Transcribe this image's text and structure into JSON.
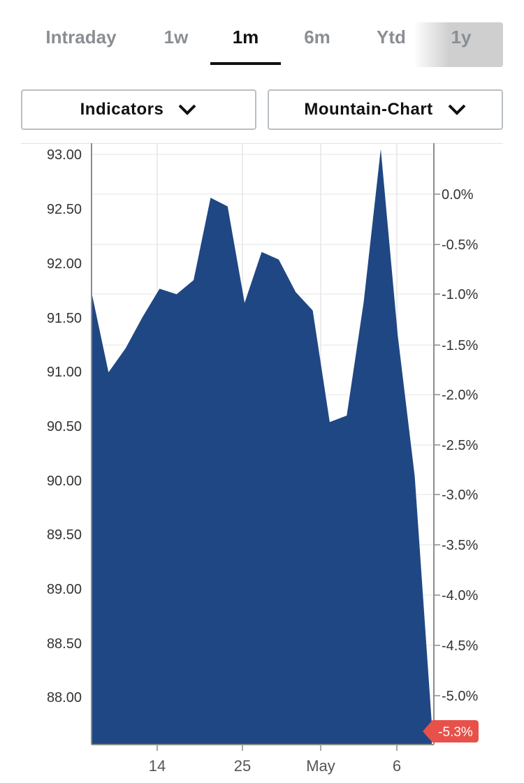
{
  "tabs": [
    {
      "label": "Intraday",
      "active": false
    },
    {
      "label": "1w",
      "active": false
    },
    {
      "label": "1m",
      "active": true
    },
    {
      "label": "6m",
      "active": false
    },
    {
      "label": "Ytd",
      "active": false
    },
    {
      "label": "1y",
      "active": false
    }
  ],
  "controls": {
    "indicators_label": "Indicators",
    "chart_type_label": "Mountain-Chart"
  },
  "colors": {
    "area_fill": "#1f4783",
    "badge": "#e8514a",
    "grid": "#e6e6e6"
  },
  "chart_data": {
    "type": "area",
    "title": "",
    "xlabel": "",
    "ylabel": "",
    "ylim": [
      87.55,
      93.05
    ],
    "y_ticks": [
      "93.00",
      "92.50",
      "92.00",
      "91.50",
      "91.00",
      "90.50",
      "90.00",
      "89.50",
      "89.00",
      "88.50",
      "88.00"
    ],
    "y2_ticks": [
      "0.0%",
      "-0.5%",
      "-1.0%",
      "-1.5%",
      "-2.0%",
      "-2.5%",
      "-3.0%",
      "-3.5%",
      "-4.0%",
      "-4.5%",
      "-5.0%"
    ],
    "x_ticks": [
      "14",
      "25",
      "May",
      "6"
    ],
    "series": [
      {
        "values": [
          91.73,
          90.99,
          91.21,
          91.5,
          91.76,
          91.71,
          91.84,
          92.6,
          92.52,
          91.63,
          92.1,
          92.03,
          91.73,
          91.56,
          90.53,
          90.59,
          91.64,
          93.05,
          91.33,
          90.03,
          87.75
        ]
      }
    ],
    "last_change_label": "-5.3%"
  }
}
